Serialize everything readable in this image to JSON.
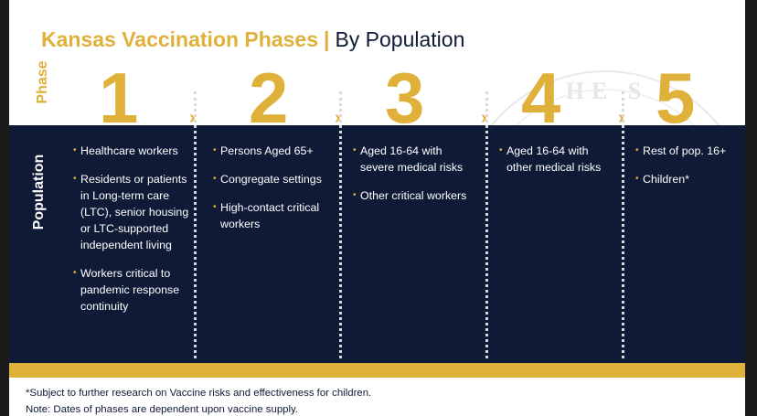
{
  "title": {
    "state": "Kansas Vaccination Phases",
    "separator": "|",
    "subtitle": "By Population"
  },
  "labels": {
    "phase": "Phase",
    "population": "Population"
  },
  "phases": [
    {
      "number": "1",
      "items": [
        "Healthcare workers",
        "Residents or patients in Long-term care (LTC), senior housing or LTC-supported independent living",
        "Workers critical to pandemic response continuity"
      ]
    },
    {
      "number": "2",
      "items": [
        "Persons Aged 65+",
        "Congregate settings",
        "High-contact critical workers"
      ]
    },
    {
      "number": "3",
      "items": [
        "Aged 16-64 with severe medical risks",
        "Other critical workers"
      ]
    },
    {
      "number": "4",
      "items": [
        "Aged 16-64 with other medical risks"
      ]
    },
    {
      "number": "5",
      "items": [
        "Rest of pop. 16+",
        "Children*"
      ]
    }
  ],
  "chevron": "›",
  "seal_text": "HE S",
  "footnotes": {
    "note1": "*Subject to further research on Vaccine risks and effectiveness for children.",
    "note2": "Note: Dates of phases are dependent upon vaccine supply."
  },
  "colors": {
    "gold": "#e0b13a",
    "navy": "#0e1a36"
  }
}
